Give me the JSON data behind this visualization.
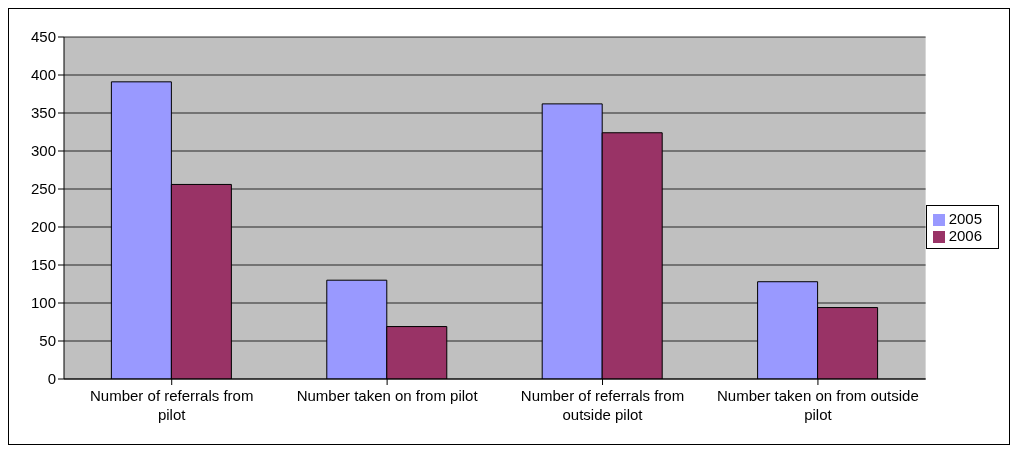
{
  "chart_data": {
    "type": "bar",
    "categories": [
      "Number of referrals from pilot",
      "Number taken on from pilot",
      "Number of referrals from outside pilot",
      "Number taken on from outside pilot"
    ],
    "series": [
      {
        "name": "2005",
        "color": "#9999ff",
        "values": [
          391,
          130,
          362,
          128
        ]
      },
      {
        "name": "2006",
        "color": "#993366",
        "values": [
          256,
          69,
          324,
          94
        ]
      }
    ],
    "ylim": [
      0,
      450
    ],
    "yticks": [
      0,
      50,
      100,
      150,
      200,
      250,
      300,
      350,
      400,
      450
    ],
    "grid": "y",
    "legend": "right"
  }
}
